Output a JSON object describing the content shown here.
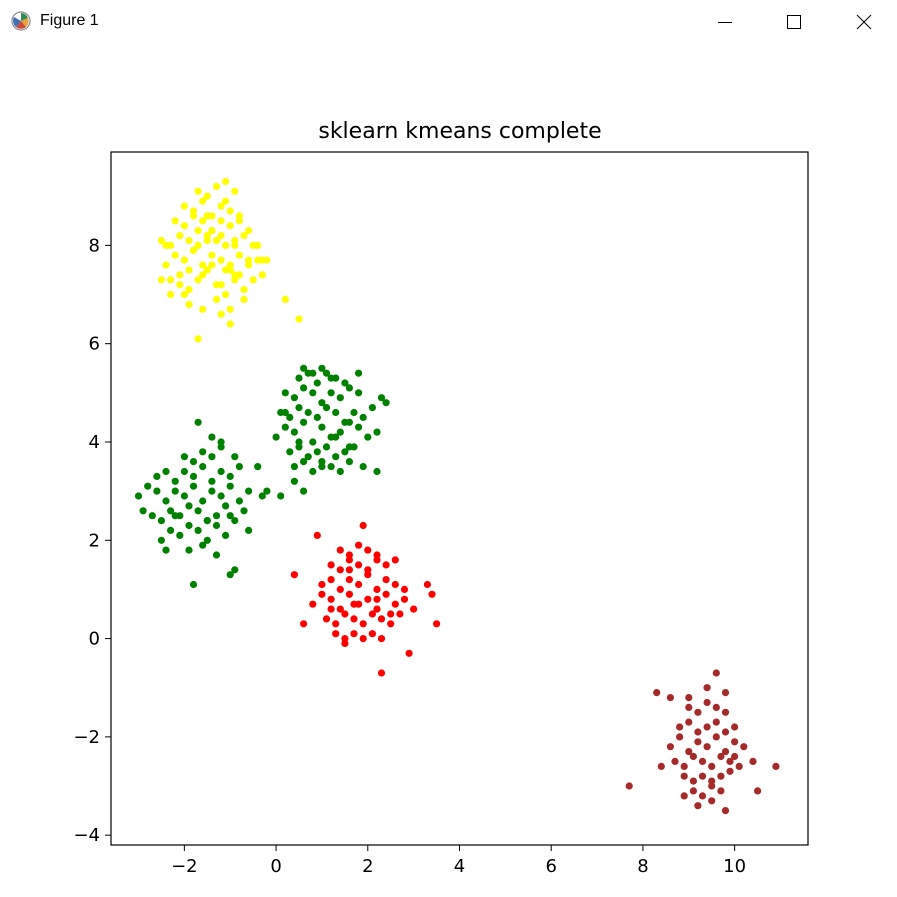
{
  "window": {
    "title": "Figure 1",
    "icon": "matplotlib-figure-icon",
    "controls": {
      "minimize_icon": "minimize-icon",
      "maximize_icon": "maximize-icon",
      "close_icon": "close-icon"
    }
  },
  "chart_data": {
    "type": "scatter",
    "title": "sklearn kmeans complete",
    "xlabel": "",
    "ylabel": "",
    "xlim": [
      -3.6,
      11.6
    ],
    "ylim": [
      -4.2,
      9.9
    ],
    "xticks": [
      -2,
      0,
      2,
      4,
      6,
      8,
      10
    ],
    "yticks": [
      -4,
      -2,
      0,
      2,
      4,
      6,
      8
    ],
    "grid": false,
    "series": [
      {
        "color": "#ffff00",
        "center": [
          -1.3,
          7.6
        ],
        "x": [
          -2.5,
          -2.3,
          -2.1,
          -1.9,
          -1.7,
          -1.5,
          -1.3,
          -1.1,
          -0.9,
          -0.7,
          -0.5,
          -0.3,
          -2.4,
          -2.2,
          -2.0,
          -1.8,
          -1.6,
          -1.4,
          -1.2,
          -1.0,
          -0.8,
          -0.6,
          -0.4,
          -2.5,
          -2.3,
          -2.1,
          -1.9,
          -1.7,
          -1.5,
          -1.3,
          -1.1,
          -0.9,
          -0.7,
          -0.5,
          -2.2,
          -2.0,
          -1.8,
          -1.6,
          -1.4,
          -1.2,
          -1.0,
          -0.8,
          -0.6,
          -2.0,
          -1.8,
          -1.6,
          -1.4,
          -1.2,
          -1.0,
          -0.8,
          -1.7,
          -1.5,
          -1.3,
          -1.1,
          -0.9,
          -1.9,
          -1.6,
          -1.3,
          -1.0,
          -0.7,
          -1.2,
          -1.0,
          -0.9,
          -1.4,
          -1.6,
          -1.1,
          -0.6,
          -0.4,
          -2.3,
          -2.1,
          -1.5,
          -1.2,
          -1.8,
          -0.2,
          0.2,
          0.5,
          -1.7,
          -1.1,
          -1.3,
          -1.0,
          -2.0,
          -2.4,
          -0.8,
          -1.5,
          -1.9,
          -1.2,
          -0.3,
          -1.4,
          -1.7,
          -0.9
        ],
        "y": [
          7.3,
          7.0,
          7.2,
          7.1,
          7.3,
          7.5,
          7.2,
          7.0,
          7.3,
          7.1,
          7.3,
          7.4,
          7.6,
          7.8,
          7.7,
          7.9,
          7.6,
          7.8,
          7.7,
          7.6,
          7.8,
          7.6,
          7.7,
          8.1,
          8.0,
          8.2,
          8.1,
          8.0,
          8.2,
          8.1,
          8.0,
          8.1,
          8.2,
          8.0,
          8.5,
          8.4,
          8.6,
          8.5,
          8.3,
          8.5,
          8.4,
          8.6,
          8.3,
          8.8,
          8.7,
          8.9,
          8.6,
          8.8,
          8.7,
          8.5,
          9.1,
          9.0,
          9.2,
          8.9,
          9.1,
          6.8,
          6.7,
          6.9,
          6.4,
          6.9,
          6.6,
          6.7,
          7.4,
          8.3,
          7.4,
          7.5,
          7.7,
          8.0,
          7.3,
          7.4,
          8.1,
          7.2,
          7.9,
          7.7,
          6.9,
          6.5,
          6.1,
          9.3,
          8.1,
          7.5,
          7.0,
          8.0,
          7.4,
          8.6,
          7.5,
          8.2,
          7.7,
          7.6,
          8.3,
          8.0
        ]
      },
      {
        "color": "#008000",
        "center": [
          1.0,
          4.3
        ],
        "x": [
          0.0,
          0.2,
          0.4,
          0.6,
          0.8,
          1.0,
          1.2,
          1.4,
          1.6,
          1.8,
          2.0,
          2.2,
          0.1,
          0.3,
          0.5,
          0.7,
          0.9,
          1.1,
          1.3,
          1.5,
          1.7,
          1.9,
          2.1,
          0.2,
          0.4,
          0.6,
          0.8,
          1.0,
          1.2,
          1.4,
          1.6,
          1.8,
          0.3,
          0.5,
          0.7,
          0.9,
          1.1,
          1.3,
          1.5,
          1.7,
          0.4,
          0.6,
          0.8,
          1.0,
          1.2,
          1.4,
          1.6,
          0.5,
          0.7,
          0.9,
          1.1,
          1.3,
          0.6,
          0.8,
          1.0,
          1.2,
          1.5,
          1.8,
          2.3,
          2.4,
          0.1,
          0.4,
          0.6,
          1.9,
          2.2,
          1.0,
          1.3,
          0.5,
          0.2,
          1.6
        ],
        "y": [
          4.1,
          4.3,
          4.2,
          4.4,
          4.0,
          4.3,
          4.1,
          4.2,
          4.4,
          4.3,
          4.1,
          4.2,
          4.6,
          4.5,
          4.7,
          4.6,
          4.5,
          4.7,
          4.6,
          4.4,
          4.6,
          4.5,
          4.7,
          5.0,
          4.9,
          5.1,
          5.0,
          4.8,
          5.0,
          4.9,
          5.1,
          5.0,
          3.8,
          3.9,
          3.7,
          3.8,
          3.9,
          3.7,
          3.8,
          3.9,
          3.5,
          3.6,
          3.4,
          3.6,
          3.5,
          3.4,
          3.6,
          5.3,
          5.4,
          5.2,
          5.4,
          5.3,
          5.5,
          5.4,
          5.5,
          5.3,
          5.2,
          5.4,
          4.9,
          4.8,
          2.9,
          3.2,
          3.0,
          3.5,
          3.4,
          3.5,
          4.1,
          4.0,
          4.6,
          3.9
        ]
      },
      {
        "color": "#008000",
        "center": [
          -1.7,
          2.8
        ],
        "x": [
          -3.0,
          -2.8,
          -2.6,
          -2.4,
          -2.2,
          -2.0,
          -1.8,
          -1.6,
          -1.4,
          -1.2,
          -1.0,
          -0.8,
          -0.6,
          -2.9,
          -2.7,
          -2.5,
          -2.3,
          -2.1,
          -1.9,
          -1.7,
          -1.5,
          -1.3,
          -1.1,
          -0.9,
          -0.7,
          -2.6,
          -2.4,
          -2.2,
          -2.0,
          -1.8,
          -1.6,
          -1.4,
          -1.2,
          -1.0,
          -0.8,
          -2.3,
          -2.1,
          -1.9,
          -1.7,
          -1.5,
          -1.3,
          -1.1,
          -2.0,
          -1.8,
          -1.6,
          -1.4,
          -1.2,
          -1.9,
          -1.6,
          -1.3,
          -1.0,
          -0.9,
          -1.8,
          -2.4,
          -2.5,
          -1.4,
          -0.4,
          -0.3,
          -0.2,
          -1.2,
          -0.6,
          -0.9,
          -1.5,
          -2.2,
          -1.7,
          -1.0
        ],
        "y": [
          2.9,
          3.1,
          3.0,
          2.8,
          3.0,
          2.9,
          3.1,
          2.8,
          3.0,
          2.9,
          3.1,
          2.8,
          3.0,
          2.6,
          2.5,
          2.4,
          2.6,
          2.5,
          2.7,
          2.6,
          2.4,
          2.5,
          2.7,
          2.4,
          2.6,
          3.3,
          3.4,
          3.2,
          3.4,
          3.3,
          3.5,
          3.2,
          3.4,
          3.3,
          3.5,
          2.2,
          2.1,
          2.3,
          2.2,
          2.0,
          2.3,
          2.1,
          3.7,
          3.6,
          3.8,
          3.7,
          3.9,
          1.8,
          1.9,
          1.7,
          1.3,
          1.4,
          1.1,
          1.8,
          2.0,
          4.1,
          3.5,
          2.9,
          3.0,
          4.0,
          2.2,
          3.7,
          2.4,
          2.5,
          4.4,
          2.5
        ]
      },
      {
        "color": "#ff0000",
        "center": [
          2.1,
          0.8
        ],
        "x": [
          0.8,
          1.0,
          1.2,
          1.4,
          1.6,
          1.8,
          2.0,
          2.2,
          2.4,
          2.6,
          2.8,
          3.0,
          1.0,
          1.2,
          1.4,
          1.6,
          1.8,
          2.0,
          2.2,
          2.4,
          2.6,
          2.8,
          1.1,
          1.3,
          1.5,
          1.7,
          1.9,
          2.1,
          2.3,
          2.5,
          2.7,
          1.2,
          1.4,
          1.6,
          1.8,
          2.0,
          2.2,
          2.4,
          2.6,
          1.3,
          1.5,
          1.7,
          1.9,
          2.1,
          2.3,
          1.4,
          1.6,
          1.8,
          2.0,
          2.2,
          0.4,
          0.6,
          3.4,
          3.5,
          2.9,
          2.3,
          1.9,
          0.9,
          1.5,
          1.6,
          3.3,
          2.2,
          1.2,
          1.7,
          2.5
        ],
        "y": [
          0.7,
          0.9,
          0.8,
          0.6,
          0.9,
          0.7,
          0.8,
          0.6,
          0.9,
          0.7,
          0.8,
          0.6,
          1.1,
          1.2,
          1.0,
          1.2,
          1.1,
          1.3,
          1.0,
          1.2,
          1.1,
          1.0,
          0.4,
          0.3,
          0.5,
          0.4,
          0.3,
          0.5,
          0.4,
          0.3,
          0.5,
          1.5,
          1.4,
          1.6,
          1.5,
          1.4,
          1.6,
          1.5,
          1.6,
          0.1,
          0.0,
          0.1,
          0.0,
          0.1,
          0.0,
          1.8,
          1.7,
          1.9,
          1.8,
          1.7,
          1.3,
          0.3,
          0.9,
          0.3,
          -0.3,
          -0.7,
          2.3,
          2.1,
          -0.1,
          1.4,
          1.1,
          0.8,
          0.6,
          0.7,
          0.5
        ]
      },
      {
        "color": "#a52a2a",
        "center": [
          9.3,
          -2.3
        ],
        "x": [
          8.6,
          8.8,
          9.0,
          9.2,
          9.4,
          9.6,
          9.8,
          10.0,
          10.2,
          8.7,
          8.9,
          9.1,
          9.3,
          9.5,
          9.7,
          9.9,
          10.1,
          8.8,
          9.0,
          9.2,
          9.4,
          9.6,
          9.8,
          10.0,
          8.9,
          9.1,
          9.3,
          9.5,
          9.7,
          9.9,
          9.0,
          9.2,
          9.4,
          9.6,
          9.8,
          9.1,
          9.3,
          9.5,
          9.7,
          8.6,
          9.0,
          9.4,
          9.8,
          8.3,
          8.4,
          10.4,
          10.5,
          10.9,
          7.7,
          9.6,
          9.8,
          8.9,
          9.2,
          9.5,
          10.0
        ],
        "y": [
          -2.2,
          -2.0,
          -2.3,
          -2.1,
          -2.2,
          -2.0,
          -2.3,
          -2.1,
          -2.2,
          -2.5,
          -2.6,
          -2.4,
          -2.5,
          -2.6,
          -2.4,
          -2.5,
          -2.6,
          -1.8,
          -1.7,
          -1.9,
          -1.8,
          -1.7,
          -1.9,
          -1.8,
          -2.8,
          -2.9,
          -2.8,
          -2.9,
          -2.8,
          -2.7,
          -1.4,
          -1.5,
          -1.3,
          -1.4,
          -1.5,
          -3.1,
          -3.2,
          -3.0,
          -3.1,
          -1.2,
          -1.2,
          -1.0,
          -1.1,
          -1.1,
          -2.6,
          -2.5,
          -3.1,
          -2.6,
          -3.0,
          -0.7,
          -3.5,
          -3.2,
          -3.4,
          -3.3,
          -2.4
        ]
      }
    ]
  }
}
